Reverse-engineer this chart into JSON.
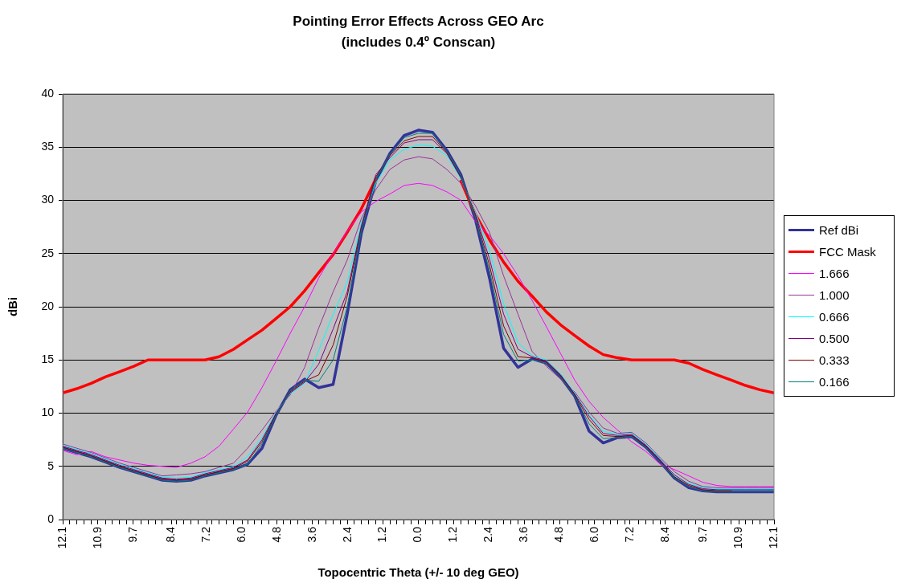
{
  "chart_data": {
    "type": "line",
    "title": "Pointing Error Effects Across GEO Arc",
    "subtitle": "(includes 0.4º Conscan)",
    "xlabel": "Topocentric Theta (+/- 10 deg GEO)",
    "ylabel": "dBi",
    "x": [
      -12.1,
      -11.62,
      -11.13,
      -10.65,
      -10.16,
      -9.68,
      -9.2,
      -8.71,
      -8.23,
      -7.74,
      -7.26,
      -6.78,
      -6.29,
      -5.81,
      -5.32,
      -4.84,
      -4.36,
      -3.87,
      -3.39,
      -2.9,
      -2.42,
      -1.94,
      -1.45,
      -0.97,
      -0.48,
      0,
      0.48,
      0.97,
      1.45,
      1.94,
      2.42,
      2.9,
      3.39,
      3.87,
      4.36,
      4.84,
      5.32,
      5.81,
      6.29,
      6.78,
      7.26,
      7.74,
      8.23,
      8.71,
      9.2,
      9.68,
      10.16,
      10.65,
      11.13,
      11.62,
      12.1
    ],
    "xlim": [
      -12.1,
      12.1
    ],
    "xticks": [
      {
        "value": -12.1,
        "label": "12.1"
      },
      {
        "value": -11.86,
        "label": null
      },
      {
        "value": -11.62,
        "label": null
      },
      {
        "value": -11.37,
        "label": null
      },
      {
        "value": -11.13,
        "label": null
      },
      {
        "value": -10.9,
        "label": "10.9"
      },
      {
        "value": -10.65,
        "label": null
      },
      {
        "value": -10.41,
        "label": null
      },
      {
        "value": -10.16,
        "label": null
      },
      {
        "value": -9.92,
        "label": null
      },
      {
        "value": -9.7,
        "label": "9.7"
      },
      {
        "value": -9.44,
        "label": null
      },
      {
        "value": -9.2,
        "label": null
      },
      {
        "value": -8.95,
        "label": null
      },
      {
        "value": -8.71,
        "label": null
      },
      {
        "value": -8.4,
        "label": "8.4"
      },
      {
        "value": -8.23,
        "label": null
      },
      {
        "value": -7.99,
        "label": null
      },
      {
        "value": -7.74,
        "label": null
      },
      {
        "value": -7.5,
        "label": null
      },
      {
        "value": -7.2,
        "label": "7.2"
      },
      {
        "value": -7.02,
        "label": null
      },
      {
        "value": -6.78,
        "label": null
      },
      {
        "value": -6.53,
        "label": null
      },
      {
        "value": -6.29,
        "label": null
      },
      {
        "value": -6.0,
        "label": "6.0"
      },
      {
        "value": -5.81,
        "label": null
      },
      {
        "value": -5.57,
        "label": null
      },
      {
        "value": -5.32,
        "label": null
      },
      {
        "value": -5.08,
        "label": null
      },
      {
        "value": -4.8,
        "label": "4.8"
      },
      {
        "value": -4.6,
        "label": null
      },
      {
        "value": -4.36,
        "label": null
      },
      {
        "value": -4.11,
        "label": null
      },
      {
        "value": -3.87,
        "label": null
      },
      {
        "value": -3.6,
        "label": "3.6"
      },
      {
        "value": -3.39,
        "label": null
      },
      {
        "value": -3.15,
        "label": null
      },
      {
        "value": -2.9,
        "label": null
      },
      {
        "value": -2.66,
        "label": null
      },
      {
        "value": -2.4,
        "label": "2.4"
      },
      {
        "value": -2.18,
        "label": null
      },
      {
        "value": -1.94,
        "label": null
      },
      {
        "value": -1.69,
        "label": null
      },
      {
        "value": -1.45,
        "label": null
      },
      {
        "value": -1.2,
        "label": "1.2"
      },
      {
        "value": -0.97,
        "label": null
      },
      {
        "value": -0.73,
        "label": null
      },
      {
        "value": -0.48,
        "label": null
      },
      {
        "value": -0.24,
        "label": null
      },
      {
        "value": 0,
        "label": "0.0"
      },
      {
        "value": 0.24,
        "label": null
      },
      {
        "value": 0.48,
        "label": null
      },
      {
        "value": 0.73,
        "label": null
      },
      {
        "value": 0.97,
        "label": null
      },
      {
        "value": 1.2,
        "label": "1.2"
      },
      {
        "value": 1.45,
        "label": null
      },
      {
        "value": 1.69,
        "label": null
      },
      {
        "value": 1.94,
        "label": null
      },
      {
        "value": 2.18,
        "label": null
      },
      {
        "value": 2.4,
        "label": "2.4"
      },
      {
        "value": 2.66,
        "label": null
      },
      {
        "value": 2.9,
        "label": null
      },
      {
        "value": 3.15,
        "label": null
      },
      {
        "value": 3.39,
        "label": null
      },
      {
        "value": 3.6,
        "label": "3.6"
      },
      {
        "value": 3.87,
        "label": null
      },
      {
        "value": 4.11,
        "label": null
      },
      {
        "value": 4.36,
        "label": null
      },
      {
        "value": 4.6,
        "label": null
      },
      {
        "value": 4.8,
        "label": "4.8"
      },
      {
        "value": 5.08,
        "label": null
      },
      {
        "value": 5.32,
        "label": null
      },
      {
        "value": 5.57,
        "label": null
      },
      {
        "value": 5.81,
        "label": null
      },
      {
        "value": 6.0,
        "label": "6.0"
      },
      {
        "value": 6.29,
        "label": null
      },
      {
        "value": 6.53,
        "label": null
      },
      {
        "value": 6.78,
        "label": null
      },
      {
        "value": 7.02,
        "label": null
      },
      {
        "value": 7.2,
        "label": "7.2"
      },
      {
        "value": 7.5,
        "label": null
      },
      {
        "value": 7.74,
        "label": null
      },
      {
        "value": 7.99,
        "label": null
      },
      {
        "value": 8.23,
        "label": null
      },
      {
        "value": 8.4,
        "label": "8.4"
      },
      {
        "value": 8.71,
        "label": null
      },
      {
        "value": 8.95,
        "label": null
      },
      {
        "value": 9.2,
        "label": null
      },
      {
        "value": 9.44,
        "label": null
      },
      {
        "value": 9.7,
        "label": "9.7"
      },
      {
        "value": 9.92,
        "label": null
      },
      {
        "value": 10.16,
        "label": null
      },
      {
        "value": 10.41,
        "label": null
      },
      {
        "value": 10.65,
        "label": null
      },
      {
        "value": 10.9,
        "label": "10.9"
      },
      {
        "value": 11.13,
        "label": null
      },
      {
        "value": 11.37,
        "label": null
      },
      {
        "value": 11.62,
        "label": null
      },
      {
        "value": 11.86,
        "label": null
      },
      {
        "value": 12.1,
        "label": "12.1"
      }
    ],
    "ylim": [
      0,
      40
    ],
    "yticks": [
      0,
      5,
      10,
      15,
      20,
      25,
      30,
      35,
      40
    ],
    "grid": "y",
    "legend": "right",
    "marker": "none",
    "line_style": "solid",
    "series": [
      {
        "name": "Ref dBi",
        "color": "#333399",
        "values": [
          6.7,
          6.3,
          5.9,
          5.4,
          4.9,
          4.5,
          4.1,
          3.7,
          3.6,
          3.7,
          4.1,
          4.4,
          4.7,
          5.2,
          6.7,
          9.8,
          12.2,
          13.2,
          12.4,
          12.7,
          19.3,
          26.9,
          31.8,
          34.4,
          36.1,
          36.6,
          36.4,
          34.7,
          32.4,
          28.2,
          22.7,
          16.1,
          14.3,
          15.1,
          14.7,
          13.4,
          11.6,
          8.3,
          7.2,
          7.7,
          7.8,
          6.8,
          5.4,
          3.9,
          3.0,
          2.7,
          2.6,
          2.6,
          2.6,
          2.6,
          2.6
        ]
      },
      {
        "name": "FCC Mask",
        "color": "#ff0000",
        "values": [
          11.9,
          12.3,
          12.8,
          13.4,
          13.9,
          14.4,
          15,
          15,
          15,
          15,
          15,
          15.3,
          16.0,
          16.9,
          17.8,
          18.9,
          20.0,
          21.5,
          23.2,
          24.9,
          27.0,
          29.2,
          32.0,
          null,
          null,
          null,
          null,
          null,
          31.8,
          28.7,
          26.3,
          24.2,
          22.4,
          21.0,
          19.5,
          18.3,
          17.3,
          16.3,
          15.5,
          15.2,
          15,
          15,
          15,
          15,
          14.7,
          14.1,
          13.6,
          13.1,
          12.6,
          12.2,
          11.9
        ]
      },
      {
        "name": "1.666",
        "color": "#ff00ff",
        "values": [
          6.5,
          6.1,
          6.4,
          5.9,
          5.6,
          5.3,
          5.1,
          5.0,
          4.9,
          5.3,
          5.9,
          6.9,
          8.5,
          10.1,
          12.4,
          14.9,
          17.5,
          20.0,
          22.7,
          25.0,
          27.1,
          28.9,
          29.9,
          30.6,
          31.4,
          31.6,
          31.4,
          30.8,
          30.0,
          28.0,
          26.7,
          25.0,
          22.9,
          20.6,
          18.1,
          15.6,
          13.1,
          11.1,
          9.6,
          8.4,
          7.3,
          6.4,
          5.2,
          4.7,
          4.1,
          3.5,
          3.2,
          3.1,
          3.1,
          3.1,
          3.1
        ]
      },
      {
        "name": "1.000",
        "color": "#993399",
        "values": [
          7.1,
          6.7,
          6.3,
          5.8,
          5.3,
          4.9,
          4.5,
          4.1,
          4.2,
          4.3,
          4.5,
          4.9,
          5.3,
          6.7,
          8.4,
          10.2,
          11.7,
          14.3,
          18.0,
          21.4,
          24.4,
          28.3,
          31.0,
          32.9,
          33.8,
          34.1,
          33.9,
          32.9,
          31.6,
          29.5,
          27.0,
          22.9,
          19.3,
          15.8,
          14.4,
          13.2,
          12.0,
          10.1,
          8.6,
          8.1,
          8.2,
          7.2,
          5.8,
          4.5,
          3.6,
          3.1,
          3.0,
          3.0,
          3.0,
          3.0,
          3.0
        ]
      },
      {
        "name": "0.666",
        "color": "#00ffff",
        "values": [
          7.0,
          6.6,
          6.2,
          5.7,
          5.2,
          4.8,
          4.4,
          4.0,
          3.9,
          4.0,
          4.4,
          4.7,
          5.0,
          5.9,
          7.7,
          10.1,
          11.8,
          12.8,
          15.9,
          19.3,
          22.3,
          27.9,
          31.6,
          33.8,
          34.8,
          35.2,
          35.1,
          34.2,
          32.0,
          28.9,
          25.3,
          20.3,
          16.6,
          15.4,
          15.0,
          13.7,
          11.9,
          9.8,
          8.3,
          8.0,
          8.1,
          7.1,
          5.7,
          4.1,
          3.4,
          3.0,
          2.9,
          2.9,
          2.9,
          2.9,
          2.9
        ]
      },
      {
        "name": "0.500",
        "color": "#800080",
        "values": [
          6.9,
          6.5,
          6.1,
          5.6,
          5.1,
          4.7,
          4.3,
          3.9,
          3.8,
          3.9,
          4.3,
          4.6,
          4.9,
          5.6,
          7.5,
          10.0,
          11.9,
          12.9,
          14.6,
          17.9,
          21.4,
          27.6,
          32.4,
          34.0,
          35.4,
          35.7,
          35.7,
          34.4,
          32.1,
          28.7,
          24.5,
          19.3,
          16.0,
          15.3,
          14.9,
          13.6,
          11.8,
          9.7,
          8.1,
          7.9,
          8.0,
          7.0,
          5.6,
          4.2,
          3.3,
          2.9,
          2.8,
          2.8,
          2.8,
          2.8,
          2.8
        ]
      },
      {
        "name": "0.333",
        "color": "#800000",
        "values": [
          6.8,
          6.4,
          6.0,
          5.5,
          5.0,
          4.6,
          4.2,
          3.8,
          3.7,
          3.8,
          4.2,
          4.5,
          4.8,
          5.5,
          7.3,
          9.9,
          12.0,
          13.0,
          13.6,
          16.4,
          21.0,
          27.4,
          32.2,
          34.2,
          35.6,
          36.0,
          36.0,
          34.5,
          32.2,
          28.5,
          23.9,
          18.2,
          15.3,
          15.2,
          14.8,
          13.5,
          11.7,
          9.4,
          7.9,
          7.8,
          7.9,
          6.9,
          5.5,
          4.0,
          3.2,
          2.8,
          2.7,
          2.7,
          null,
          null,
          null
        ]
      },
      {
        "name": "0.166",
        "color": "#008080",
        "values": [
          6.7,
          6.3,
          5.9,
          5.4,
          4.9,
          4.5,
          4.1,
          3.7,
          3.6,
          3.7,
          4.1,
          4.4,
          4.7,
          5.2,
          7.1,
          9.8,
          12.1,
          13.1,
          13.0,
          15.0,
          20.0,
          27.2,
          32.0,
          34.3,
          35.9,
          36.3,
          36.3,
          34.6,
          32.3,
          28.4,
          23.4,
          17.4,
          14.9,
          15.0,
          14.7,
          13.4,
          11.6,
          9.0,
          7.6,
          7.7,
          7.8,
          6.8,
          5.4,
          3.9,
          3.1,
          2.7,
          2.6,
          2.6,
          2.6,
          2.6,
          2.6
        ]
      }
    ]
  }
}
